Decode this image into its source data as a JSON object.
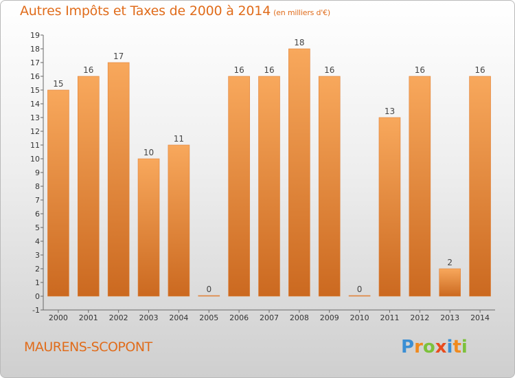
{
  "header": {
    "title": "Autres Impôts et Taxes de 2000 à 2014",
    "unit": "(en milliers d'€)"
  },
  "footer": {
    "commune": "MAURENS-SCOPONT",
    "logo_letters": [
      "P",
      "r",
      "o",
      "x",
      "i",
      "t",
      "i"
    ],
    "logo_colors": [
      "#3b8fd4",
      "#f08a1e",
      "#7cc13b",
      "#e84c1e",
      "#3b8fd4",
      "#f08a1e",
      "#7cc13b"
    ]
  },
  "colors": {
    "title": "#e06c1b",
    "bar_light": "#f7a65a",
    "bar_dark": "#c8661e",
    "axis": "#555555"
  },
  "chart_data": {
    "type": "bar",
    "title": "Autres Impôts et Taxes de 2000 à 2014",
    "subtitle": "(en milliers d'€)",
    "categories": [
      "2000",
      "2001",
      "2002",
      "2003",
      "2004",
      "2005",
      "2006",
      "2007",
      "2008",
      "2009",
      "2010",
      "2011",
      "2012",
      "2013",
      "2014"
    ],
    "values": [
      15,
      16,
      17,
      10,
      11,
      0,
      16,
      16,
      18,
      16,
      0,
      13,
      16,
      2,
      16
    ],
    "data_labels": [
      "15",
      "16",
      "17",
      "10",
      "11",
      "0",
      "16",
      "16",
      "18",
      "16",
      "0",
      "13",
      "16",
      "2",
      "16"
    ],
    "ylim": [
      -1,
      19
    ],
    "yticks": [
      -1,
      0,
      1,
      2,
      3,
      4,
      5,
      6,
      7,
      8,
      9,
      10,
      11,
      12,
      13,
      14,
      15,
      16,
      17,
      18,
      19
    ],
    "ytick_labels": [
      "-1",
      "0",
      "1",
      "2",
      "3",
      "4",
      "5",
      "6",
      "7",
      "8",
      "9",
      "10",
      "11",
      "12",
      "13",
      "14",
      "15",
      "16",
      "17",
      "18",
      "19"
    ],
    "grid": false,
    "legend": "none"
  }
}
